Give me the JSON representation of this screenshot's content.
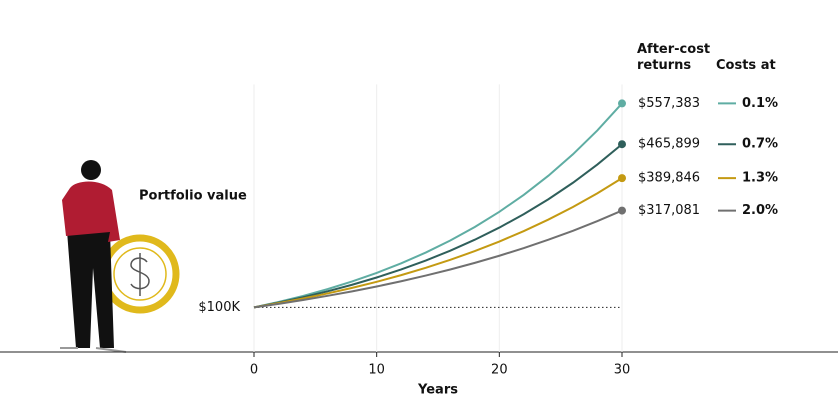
{
  "chart_data": {
    "type": "line",
    "ylabel": "Portfolio value",
    "xlabel": "Years",
    "value_header": "After-cost returns",
    "legend_title": "Costs at",
    "x": [
      0,
      2,
      4,
      6,
      8,
      10,
      12,
      14,
      16,
      18,
      20,
      22,
      24,
      26,
      28,
      30
    ],
    "xlim": [
      0,
      30
    ],
    "xticks": [
      0,
      10,
      20,
      30
    ],
    "ylim": [
      0,
      600000
    ],
    "yticks": [
      {
        "value": 100000,
        "label": "$100K"
      }
    ],
    "grid": true,
    "legend": "right",
    "series": [
      {
        "name": "0.1%",
        "color": "#5fada3",
        "values": [
          100000,
          112140,
          125750,
          141000,
          158120,
          177300,
          198830,
          222960,
          250000,
          280360,
          314370,
          352510,
          395300,
          443270,
          497110,
          557383
        ],
        "end_label": "$557,383"
      },
      {
        "name": "0.7%",
        "color": "#2f5f5b",
        "values": [
          100000,
          110800,
          122780,
          136040,
          150740,
          167020,
          185060,
          205060,
          227210,
          251760,
          278960,
          309090,
          342490,
          379460,
          420500,
          465899
        ],
        "end_label": "$465,899"
      },
      {
        "name": "1.3%",
        "color": "#c49a12",
        "values": [
          100000,
          109490,
          119890,
          131270,
          143740,
          157380,
          172330,
          188700,
          206620,
          226230,
          247710,
          271230,
          296980,
          325170,
          356040,
          389846
        ],
        "end_label": "$389,846"
      },
      {
        "name": "2.0%",
        "color": "#707070",
        "values": [
          100000,
          108000,
          116640,
          125960,
          136030,
          146900,
          158660,
          171340,
          185030,
          199840,
          215820,
          233080,
          251710,
          271830,
          293580,
          317081
        ],
        "end_label": "$317,081"
      }
    ]
  }
}
